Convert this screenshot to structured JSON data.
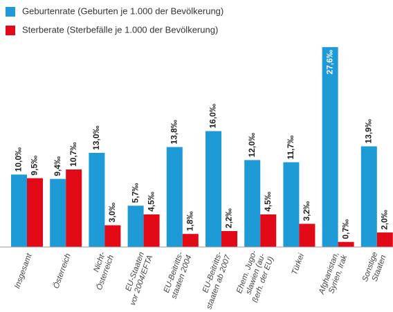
{
  "chart_data": {
    "type": "bar",
    "categories": [
      "Insgesamt",
      "Österreich",
      "Nicht-\nÖsterreich",
      "EU-Staaten\nvor 2004/EFTA",
      "EU-Beitritts-\nstaaten 2004",
      "EU-Beitritts-\nstaaten ab 2007",
      "Ehem. Jugo-\nslawien (au-\nßerh. der EU)",
      "Türkei",
      "Afghanistan,\nSyrien, Irak",
      "Sonstige\nStaaten"
    ],
    "series": [
      {
        "name": "Geburtenrate (Geburten je 1.000 der Bevölkerung)",
        "color": "#1e9ad6",
        "values": [
          10.0,
          9.4,
          13.0,
          5.7,
          13.8,
          16.0,
          12.0,
          11.7,
          27.6,
          13.9
        ],
        "value_labels": [
          "10,0‰",
          "9,4‰",
          "13,0‰",
          "5,7‰",
          "13,8‰",
          "16,0‰",
          "12,0‰",
          "11,7‰",
          "27,6‰",
          "13,9‰"
        ]
      },
      {
        "name": "Sterberate (Sterbefälle je 1.000 der Bevölkerung)",
        "color": "#e30a18",
        "values": [
          9.5,
          10.7,
          3.0,
          4.5,
          1.8,
          2.2,
          4.5,
          3.2,
          0.7,
          2.0
        ],
        "value_labels": [
          "9,5‰",
          "10,7‰",
          "3,0‰",
          "4,5‰",
          "1,8‰",
          "2,2‰",
          "4,5‰",
          "3,2‰",
          "0,7‰",
          "2,0‰"
        ]
      }
    ],
    "ylim": [
      0,
      30
    ],
    "legend": "top-left"
  }
}
